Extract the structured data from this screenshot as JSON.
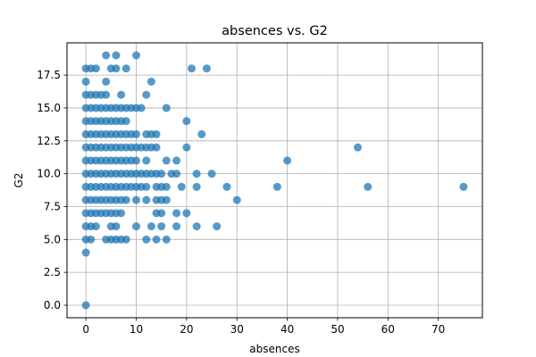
{
  "chart_data": {
    "type": "scatter",
    "title": "absences vs. G2",
    "xlabel": "absences",
    "ylabel": "G2",
    "xlim": [
      -3.75,
      78.75
    ],
    "ylim": [
      -0.95,
      19.95
    ],
    "xticks": [
      0,
      10,
      20,
      30,
      40,
      50,
      60,
      70
    ],
    "yticks": [
      0.0,
      2.5,
      5.0,
      7.5,
      10.0,
      12.5,
      15.0,
      17.5
    ],
    "xtick_labels": [
      "0",
      "10",
      "20",
      "30",
      "40",
      "50",
      "60",
      "70"
    ],
    "ytick_labels": [
      "0.0",
      "2.5",
      "5.0",
      "7.5",
      "10.0",
      "12.5",
      "15.0",
      "17.5"
    ],
    "grid": true,
    "marker_color": "#1f77b4",
    "marker_alpha": 0.75,
    "points": [
      [
        0,
        0
      ],
      [
        0,
        4
      ],
      [
        0,
        5
      ],
      [
        0,
        6
      ],
      [
        0,
        7
      ],
      [
        0,
        8
      ],
      [
        0,
        9
      ],
      [
        0,
        10
      ],
      [
        0,
        11
      ],
      [
        0,
        12
      ],
      [
        0,
        13
      ],
      [
        0,
        14
      ],
      [
        0,
        15
      ],
      [
        0,
        16
      ],
      [
        0,
        17
      ],
      [
        0,
        18
      ],
      [
        1,
        5
      ],
      [
        1,
        6
      ],
      [
        1,
        7
      ],
      [
        1,
        8
      ],
      [
        1,
        9
      ],
      [
        1,
        10
      ],
      [
        1,
        11
      ],
      [
        1,
        12
      ],
      [
        1,
        13
      ],
      [
        1,
        14
      ],
      [
        1,
        15
      ],
      [
        1,
        16
      ],
      [
        1,
        18
      ],
      [
        2,
        6
      ],
      [
        2,
        7
      ],
      [
        2,
        8
      ],
      [
        2,
        9
      ],
      [
        2,
        10
      ],
      [
        2,
        11
      ],
      [
        2,
        12
      ],
      [
        2,
        13
      ],
      [
        2,
        14
      ],
      [
        2,
        15
      ],
      [
        2,
        16
      ],
      [
        2,
        18
      ],
      [
        3,
        7
      ],
      [
        3,
        8
      ],
      [
        3,
        9
      ],
      [
        3,
        10
      ],
      [
        3,
        11
      ],
      [
        3,
        12
      ],
      [
        3,
        13
      ],
      [
        3,
        14
      ],
      [
        3,
        15
      ],
      [
        3,
        16
      ],
      [
        4,
        5
      ],
      [
        4,
        7
      ],
      [
        4,
        8
      ],
      [
        4,
        9
      ],
      [
        4,
        10
      ],
      [
        4,
        11
      ],
      [
        4,
        12
      ],
      [
        4,
        13
      ],
      [
        4,
        14
      ],
      [
        4,
        15
      ],
      [
        4,
        16
      ],
      [
        4,
        17
      ],
      [
        4,
        19
      ],
      [
        5,
        5
      ],
      [
        5,
        6
      ],
      [
        5,
        7
      ],
      [
        5,
        8
      ],
      [
        5,
        9
      ],
      [
        5,
        10
      ],
      [
        5,
        11
      ],
      [
        5,
        12
      ],
      [
        5,
        13
      ],
      [
        5,
        14
      ],
      [
        5,
        15
      ],
      [
        5,
        18
      ],
      [
        6,
        5
      ],
      [
        6,
        6
      ],
      [
        6,
        7
      ],
      [
        6,
        8
      ],
      [
        6,
        9
      ],
      [
        6,
        10
      ],
      [
        6,
        11
      ],
      [
        6,
        12
      ],
      [
        6,
        13
      ],
      [
        6,
        14
      ],
      [
        6,
        15
      ],
      [
        6,
        18
      ],
      [
        6,
        19
      ],
      [
        7,
        5
      ],
      [
        7,
        7
      ],
      [
        7,
        8
      ],
      [
        7,
        9
      ],
      [
        7,
        10
      ],
      [
        7,
        11
      ],
      [
        7,
        12
      ],
      [
        7,
        13
      ],
      [
        7,
        14
      ],
      [
        7,
        15
      ],
      [
        7,
        16
      ],
      [
        8,
        5
      ],
      [
        8,
        8
      ],
      [
        8,
        9
      ],
      [
        8,
        10
      ],
      [
        8,
        11
      ],
      [
        8,
        12
      ],
      [
        8,
        13
      ],
      [
        8,
        14
      ],
      [
        8,
        15
      ],
      [
        8,
        18
      ],
      [
        9,
        9
      ],
      [
        9,
        10
      ],
      [
        9,
        11
      ],
      [
        9,
        12
      ],
      [
        9,
        13
      ],
      [
        9,
        15
      ],
      [
        10,
        6
      ],
      [
        10,
        8
      ],
      [
        10,
        9
      ],
      [
        10,
        10
      ],
      [
        10,
        11
      ],
      [
        10,
        12
      ],
      [
        10,
        13
      ],
      [
        10,
        15
      ],
      [
        10,
        19
      ],
      [
        11,
        9
      ],
      [
        11,
        10
      ],
      [
        11,
        12
      ],
      [
        11,
        15
      ],
      [
        12,
        5
      ],
      [
        12,
        8
      ],
      [
        12,
        9
      ],
      [
        12,
        10
      ],
      [
        12,
        11
      ],
      [
        12,
        12
      ],
      [
        12,
        13
      ],
      [
        12,
        16
      ],
      [
        13,
        6
      ],
      [
        13,
        10
      ],
      [
        13,
        12
      ],
      [
        13,
        13
      ],
      [
        13,
        17
      ],
      [
        14,
        5
      ],
      [
        14,
        7
      ],
      [
        14,
        8
      ],
      [
        14,
        9
      ],
      [
        14,
        10
      ],
      [
        14,
        12
      ],
      [
        14,
        13
      ],
      [
        15,
        6
      ],
      [
        15,
        7
      ],
      [
        15,
        8
      ],
      [
        15,
        9
      ],
      [
        15,
        10
      ],
      [
        16,
        5
      ],
      [
        16,
        8
      ],
      [
        16,
        9
      ],
      [
        16,
        11
      ],
      [
        16,
        15
      ],
      [
        17,
        10
      ],
      [
        18,
        6
      ],
      [
        18,
        7
      ],
      [
        18,
        10
      ],
      [
        18,
        11
      ],
      [
        19,
        9
      ],
      [
        20,
        7
      ],
      [
        20,
        12
      ],
      [
        20,
        14
      ],
      [
        21,
        18
      ],
      [
        22,
        6
      ],
      [
        22,
        9
      ],
      [
        22,
        10
      ],
      [
        23,
        13
      ],
      [
        24,
        18
      ],
      [
        25,
        10
      ],
      [
        26,
        6
      ],
      [
        28,
        9
      ],
      [
        30,
        8
      ],
      [
        38,
        9
      ],
      [
        40,
        11
      ],
      [
        54,
        12
      ],
      [
        56,
        9
      ],
      [
        75,
        9
      ]
    ]
  }
}
